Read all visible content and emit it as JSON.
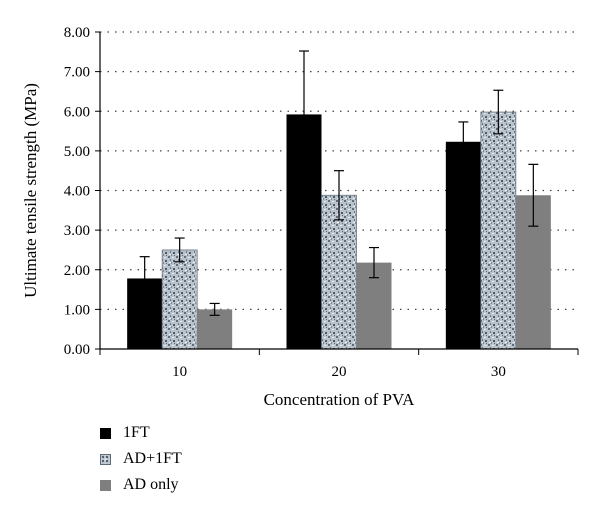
{
  "chart_data": {
    "type": "bar",
    "categories": [
      "10",
      "20",
      "30"
    ],
    "series": [
      {
        "name": "1FT",
        "values": [
          1.78,
          5.92,
          5.23
        ],
        "errors": [
          0.55,
          1.6,
          0.5
        ],
        "color": "#000000",
        "pattern": "solid"
      },
      {
        "name": "AD+1FT",
        "values": [
          2.5,
          3.88,
          5.98
        ],
        "errors": [
          0.3,
          0.62,
          0.55
        ],
        "color": "#9aa6b3",
        "pattern": "speckled"
      },
      {
        "name": "AD only",
        "values": [
          1.0,
          2.18,
          3.88
        ],
        "errors": [
          0.15,
          0.38,
          0.78
        ],
        "color": "#7f7f7f",
        "pattern": "solid"
      }
    ],
    "title": "",
    "xlabel": "Concentration of PVA",
    "ylabel": "Ultimate tensile strength (MPa)",
    "ylim": [
      0,
      8
    ],
    "yticks": [
      "0.00",
      "1.00",
      "2.00",
      "3.00",
      "4.00",
      "5.00",
      "6.00",
      "7.00",
      "8.00"
    ],
    "grid": "horizontal dotted",
    "legend_position": "bottom-left"
  }
}
